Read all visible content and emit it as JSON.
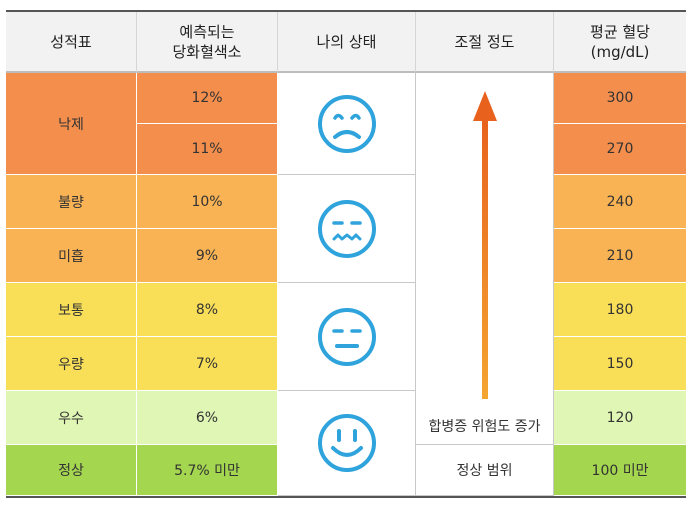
{
  "headers": {
    "grade": "성적표",
    "a1c_line1": "예측되는",
    "a1c_line2": "당화혈색소",
    "status": "나의 상태",
    "control": "조절 정도",
    "glucose_line1": "평균 혈당",
    "glucose_line2": "(mg/dL)"
  },
  "rows": [
    {
      "grade": "낙제",
      "a1c": "12%",
      "glucose": "300"
    },
    {
      "grade": "낙제",
      "a1c": "11%",
      "glucose": "270"
    },
    {
      "grade": "불량",
      "a1c": "10%",
      "glucose": "240"
    },
    {
      "grade": "미흡",
      "a1c": "9%",
      "glucose": "210"
    },
    {
      "grade": "보통",
      "a1c": "8%",
      "glucose": "180"
    },
    {
      "grade": "우량",
      "a1c": "7%",
      "glucose": "150"
    },
    {
      "grade": "우수",
      "a1c": "6%",
      "glucose": "120"
    },
    {
      "grade": "정상",
      "a1c": "5.7% 미만",
      "glucose": "100 미만"
    }
  ],
  "faces": [
    "sad-face-icon",
    "wavy-mouth-face-icon",
    "neutral-face-icon",
    "smiling-face-icon"
  ],
  "control": {
    "arrow_label": "합병증 위험도 증가",
    "normal_range": "정상 범위"
  },
  "colors": {
    "orange": "#f38e4d",
    "light_orange": "#f9b354",
    "yellow": "#f9df58",
    "light_green": "#dff6b5",
    "green": "#a4d64f",
    "icon_blue": "#2ea3dc",
    "arrow": "#e8621e"
  }
}
